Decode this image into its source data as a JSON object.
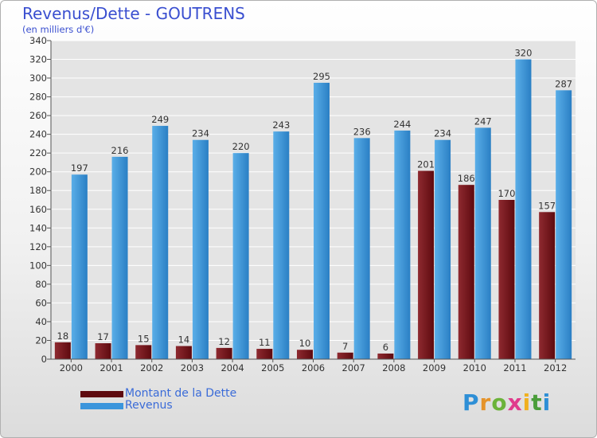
{
  "title": "Revenus/Dette - GOUTRENS",
  "subtitle": "(en milliers d'€)",
  "colors": {
    "debt_dark": "#5e0a0f",
    "debt_light": "#8e2a30",
    "revenue_dark": "#2a7fc4",
    "revenue_light": "#5aaee8",
    "grid": "#ffffff",
    "accent_text": "#3a4fd0"
  },
  "chart_data": {
    "type": "bar",
    "title": "Revenus/Dette - GOUTRENS",
    "subtitle": "(en milliers d'€)",
    "categories": [
      "2000",
      "2001",
      "2002",
      "2003",
      "2004",
      "2005",
      "2006",
      "2007",
      "2008",
      "2009",
      "2010",
      "2011",
      "2012"
    ],
    "series": [
      {
        "name": "Montant de la Dette",
        "values": [
          18,
          17,
          15,
          14,
          12,
          11,
          10,
          7,
          6,
          201,
          186,
          170,
          157
        ]
      },
      {
        "name": "Revenus",
        "values": [
          197,
          216,
          249,
          234,
          220,
          243,
          295,
          236,
          244,
          234,
          247,
          320,
          287
        ]
      }
    ],
    "yticks": [
      0,
      20,
      40,
      60,
      80,
      100,
      120,
      140,
      160,
      180,
      200,
      220,
      240,
      260,
      280,
      300,
      320,
      340
    ],
    "ylim": [
      0,
      340
    ],
    "grid": true,
    "legend_position": "bottom-left"
  },
  "legend": {
    "debt_label": "Montant de la Dette",
    "revenue_label": "Revenus"
  },
  "logo": {
    "text": "Proxiti",
    "letters": [
      "P",
      "r",
      "o",
      "x",
      "i",
      "t",
      "i"
    ]
  }
}
